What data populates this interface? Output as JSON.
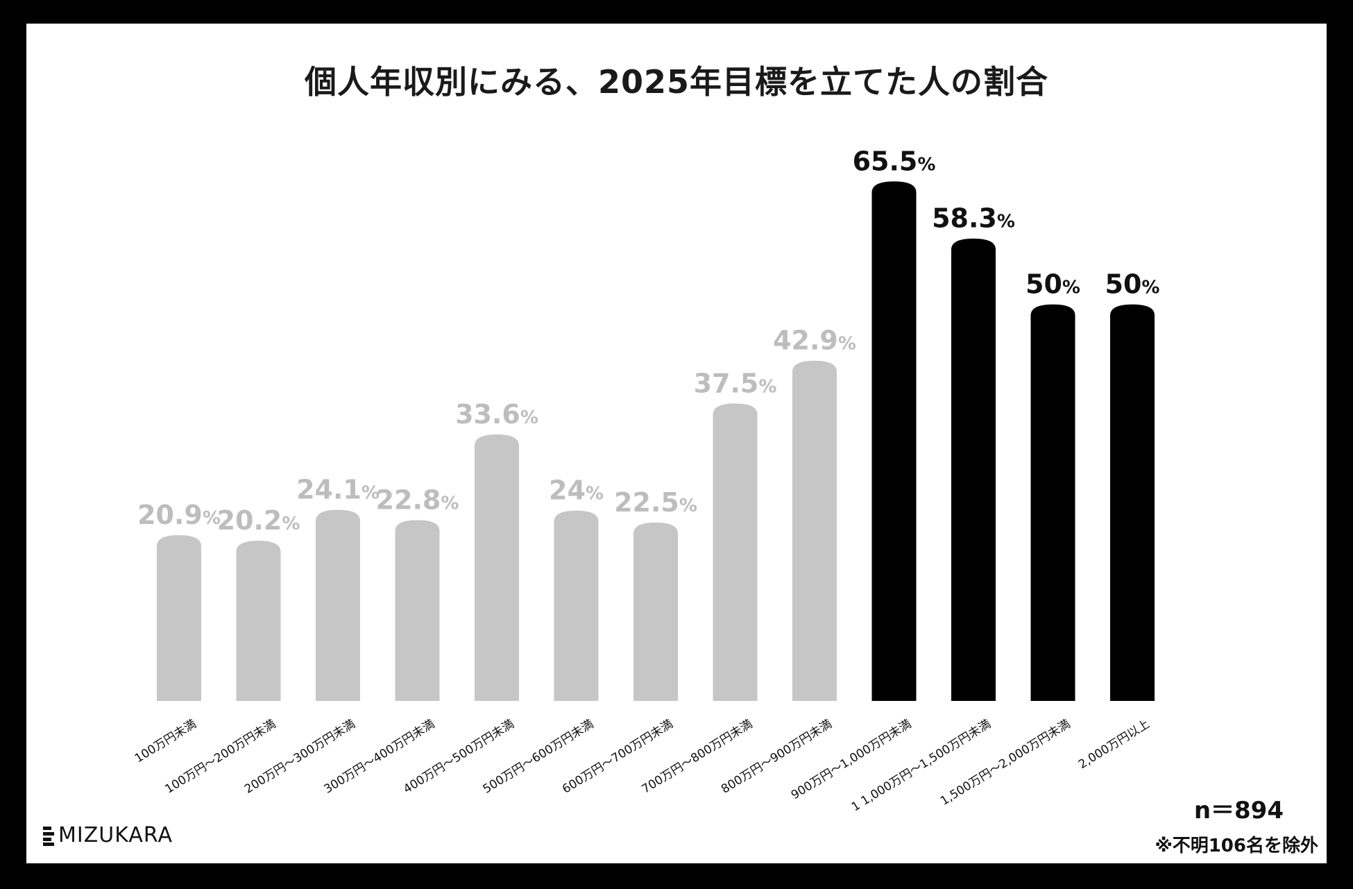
{
  "chart_data": {
    "type": "bar",
    "title": "個人年収別にみる、2025年目標を立てた人の割合",
    "categories": [
      "100万円未満",
      "100万円～200万円未満",
      "200万円～300万円未満",
      "300万円～400万円未満",
      "400万円～500万円未満",
      "500万円～600万円未満",
      "600万円～700万円未満",
      "700万円～800万円未満",
      "800万円～900万円未満",
      "900万円～1,000万円未満",
      "1 1,000万円～1,500万円未満",
      "1,500万円～2,000万円未満",
      "2,000万円以上"
    ],
    "values": [
      20.9,
      20.2,
      24.1,
      22.8,
      33.6,
      24,
      22.5,
      37.5,
      42.9,
      65.5,
      58.3,
      50,
      50
    ],
    "value_labels": [
      "20.9",
      "20.2",
      "24.1",
      "22.8",
      "33.6",
      "24",
      "22.5",
      "37.5",
      "42.9",
      "65.5",
      "58.3",
      "50",
      "50"
    ],
    "unit": "%",
    "highlight_from_index": 9,
    "ylim": [
      0,
      70
    ],
    "xlabel": "",
    "ylabel": "",
    "grid": false,
    "colors": {
      "normal": "#c6c6c6",
      "highlight": "#000000",
      "normal_label": "#bdbdbd",
      "highlight_label": "#111111"
    }
  },
  "footer": {
    "sample_size": "n＝894",
    "footnote": "※不明106名を除外",
    "brand": "MIZUKARA"
  }
}
